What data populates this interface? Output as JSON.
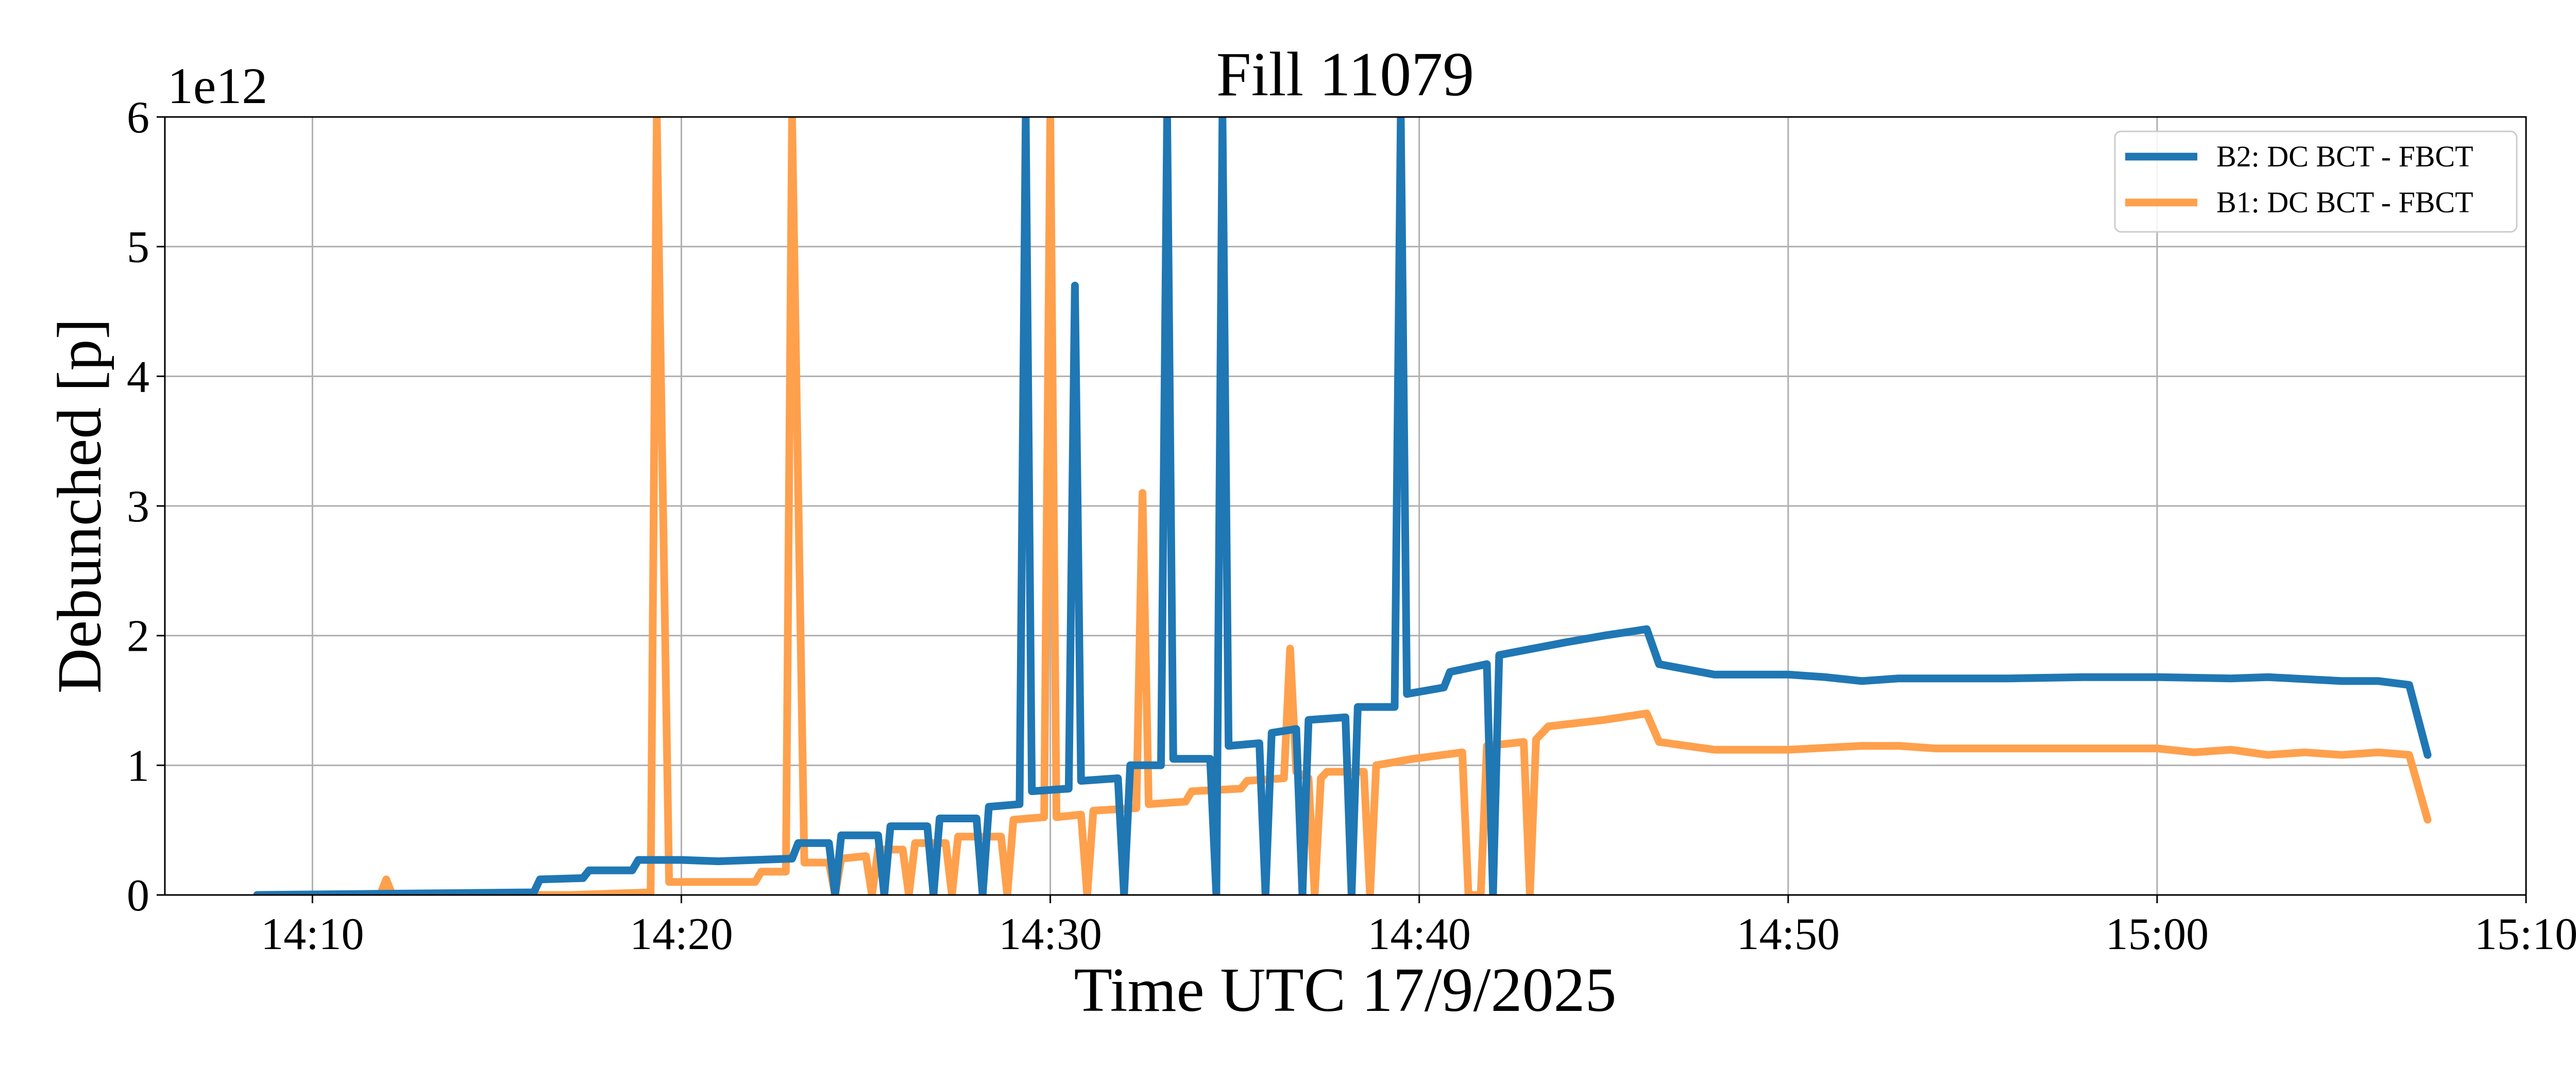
{
  "chart_data": {
    "type": "line",
    "title": "Fill 11079",
    "xlabel": "Time UTC 17/9/2025",
    "ylabel": "Debunched [p]",
    "y_offset_label": "1e12",
    "xlim": [
      "14:06",
      "15:10"
    ],
    "ylim": [
      0,
      6
    ],
    "x_ticks": [
      "14:10",
      "14:20",
      "14:30",
      "14:40",
      "14:50",
      "15:00",
      "15:10"
    ],
    "y_ticks": [
      "0",
      "1",
      "2",
      "3",
      "4",
      "5",
      "6"
    ],
    "grid": true,
    "legend": "top-right",
    "series": [
      {
        "name": "B2: DC BCT - FBCT",
        "color": "#1f77b4",
        "points": [
          [
            "14:08:30",
            0
          ],
          [
            "14:16:00",
            0.02
          ],
          [
            "14:16:10",
            0.12
          ],
          [
            "14:17:20",
            0.13
          ],
          [
            "14:17:30",
            0.19
          ],
          [
            "14:18:40",
            0.19
          ],
          [
            "14:18:50",
            0.27
          ],
          [
            "14:20:00",
            0.27
          ],
          [
            "14:21:00",
            0.26
          ],
          [
            "14:22:00",
            0.27
          ],
          [
            "14:23:00",
            0.28
          ],
          [
            "14:23:10",
            0.4
          ],
          [
            "14:24:00",
            0.4
          ],
          [
            "14:24:10",
            0
          ],
          [
            "14:24:20",
            0.46
          ],
          [
            "14:25:20",
            0.46
          ],
          [
            "14:25:30",
            0
          ],
          [
            "14:25:40",
            0.53
          ],
          [
            "14:26:40",
            0.53
          ],
          [
            "14:26:50",
            0
          ],
          [
            "14:27:00",
            0.59
          ],
          [
            "14:28:00",
            0.59
          ],
          [
            "14:28:10",
            0
          ],
          [
            "14:28:20",
            0.68
          ],
          [
            "14:29:10",
            0.7
          ],
          [
            "14:29:20",
            6
          ],
          [
            "14:29:30",
            0.8
          ],
          [
            "14:30:30",
            0.82
          ],
          [
            "14:30:40",
            4.7
          ],
          [
            "14:30:50",
            0.88
          ],
          [
            "14:31:50",
            0.9
          ],
          [
            "14:32:00",
            0
          ],
          [
            "14:32:10",
            1.0
          ],
          [
            "14:33:00",
            1.0
          ],
          [
            "14:33:10",
            6
          ],
          [
            "14:33:20",
            1.05
          ],
          [
            "14:34:20",
            1.05
          ],
          [
            "14:34:30",
            0
          ],
          [
            "14:34:40",
            6
          ],
          [
            "14:34:50",
            1.15
          ],
          [
            "14:35:40",
            1.17
          ],
          [
            "14:35:50",
            0
          ],
          [
            "14:36:00",
            1.25
          ],
          [
            "14:36:40",
            1.28
          ],
          [
            "14:36:50",
            0
          ],
          [
            "14:37:00",
            1.35
          ],
          [
            "14:38:00",
            1.37
          ],
          [
            "14:38:10",
            0
          ],
          [
            "14:38:20",
            1.45
          ],
          [
            "14:39:20",
            1.45
          ],
          [
            "14:39:30",
            6
          ],
          [
            "14:39:40",
            1.55
          ],
          [
            "14:40:40",
            1.6
          ],
          [
            "14:40:50",
            1.72
          ],
          [
            "14:41:50",
            1.78
          ],
          [
            "14:42:00",
            0
          ],
          [
            "14:42:10",
            1.85
          ],
          [
            "14:44:00",
            1.95
          ],
          [
            "14:45:00",
            2.0
          ],
          [
            "14:46:10",
            2.05
          ],
          [
            "14:46:30",
            1.78
          ],
          [
            "14:48:00",
            1.7
          ],
          [
            "14:50:00",
            1.7
          ],
          [
            "14:51:00",
            1.68
          ],
          [
            "14:52:00",
            1.65
          ],
          [
            "14:53:00",
            1.67
          ],
          [
            "14:54:00",
            1.67
          ],
          [
            "14:56:00",
            1.67
          ],
          [
            "14:58:00",
            1.68
          ],
          [
            "15:00:00",
            1.68
          ],
          [
            "15:02:00",
            1.67
          ],
          [
            "15:03:00",
            1.68
          ],
          [
            "15:05:00",
            1.65
          ],
          [
            "15:06:00",
            1.65
          ],
          [
            "15:06:50",
            1.62
          ],
          [
            "15:07:20",
            1.08
          ]
        ]
      },
      {
        "name": "B1: DC BCT - FBCT",
        "color": "#ffa04d",
        "points": [
          [
            "14:08:30",
            0
          ],
          [
            "14:11:50",
            0
          ],
          [
            "14:12:00",
            0.12
          ],
          [
            "14:12:10",
            0
          ],
          [
            "14:17:00",
            0
          ],
          [
            "14:19:10",
            0.02
          ],
          [
            "14:19:20",
            6
          ],
          [
            "14:19:40",
            0.1
          ],
          [
            "14:21:00",
            0.1
          ],
          [
            "14:22:00",
            0.1
          ],
          [
            "14:22:10",
            0.18
          ],
          [
            "14:22:50",
            0.18
          ],
          [
            "14:23:00",
            6
          ],
          [
            "14:23:20",
            0.25
          ],
          [
            "14:24:00",
            0.25
          ],
          [
            "14:24:10",
            0
          ],
          [
            "14:24:20",
            0.28
          ],
          [
            "14:25:00",
            0.3
          ],
          [
            "14:25:10",
            0
          ],
          [
            "14:25:20",
            0.35
          ],
          [
            "14:26:00",
            0.35
          ],
          [
            "14:26:10",
            0
          ],
          [
            "14:26:20",
            0.4
          ],
          [
            "14:27:10",
            0.4
          ],
          [
            "14:27:20",
            0
          ],
          [
            "14:27:30",
            0.45
          ],
          [
            "14:28:40",
            0.45
          ],
          [
            "14:28:50",
            0
          ],
          [
            "14:29:00",
            0.58
          ],
          [
            "14:29:50",
            0.6
          ],
          [
            "14:30:00",
            6
          ],
          [
            "14:30:10",
            0.6
          ],
          [
            "14:30:50",
            0.62
          ],
          [
            "14:31:00",
            0
          ],
          [
            "14:31:10",
            0.65
          ],
          [
            "14:32:20",
            0.67
          ],
          [
            "14:32:30",
            3.1
          ],
          [
            "14:32:40",
            0.7
          ],
          [
            "14:33:40",
            0.72
          ],
          [
            "14:33:50",
            0.8
          ],
          [
            "14:35:10",
            0.82
          ],
          [
            "14:35:20",
            0.88
          ],
          [
            "14:36:20",
            0.9
          ],
          [
            "14:36:30",
            1.9
          ],
          [
            "14:36:40",
            0.95
          ],
          [
            "14:37:00",
            0.9
          ],
          [
            "14:37:10",
            0
          ],
          [
            "14:37:20",
            0.9
          ],
          [
            "14:37:30",
            0.95
          ],
          [
            "14:38:30",
            0.95
          ],
          [
            "14:38:40",
            0
          ],
          [
            "14:38:50",
            1.0
          ],
          [
            "14:39:50",
            1.05
          ],
          [
            "14:41:10",
            1.1
          ],
          [
            "14:41:20",
            0
          ],
          [
            "14:41:40",
            0
          ],
          [
            "14:41:50",
            1.15
          ],
          [
            "14:42:50",
            1.18
          ],
          [
            "14:43:00",
            0
          ],
          [
            "14:43:10",
            1.2
          ],
          [
            "14:43:30",
            1.3
          ],
          [
            "14:45:00",
            1.35
          ],
          [
            "14:46:10",
            1.4
          ],
          [
            "14:46:30",
            1.18
          ],
          [
            "14:48:00",
            1.12
          ],
          [
            "14:50:00",
            1.12
          ],
          [
            "14:52:00",
            1.15
          ],
          [
            "14:53:00",
            1.15
          ],
          [
            "14:54:00",
            1.13
          ],
          [
            "14:56:00",
            1.13
          ],
          [
            "14:58:00",
            1.13
          ],
          [
            "15:00:00",
            1.13
          ],
          [
            "15:01:00",
            1.1
          ],
          [
            "15:02:00",
            1.12
          ],
          [
            "15:03:00",
            1.08
          ],
          [
            "15:04:00",
            1.1
          ],
          [
            "15:05:00",
            1.08
          ],
          [
            "15:06:00",
            1.1
          ],
          [
            "15:06:50",
            1.08
          ],
          [
            "15:07:20",
            0.58
          ]
        ]
      }
    ]
  }
}
